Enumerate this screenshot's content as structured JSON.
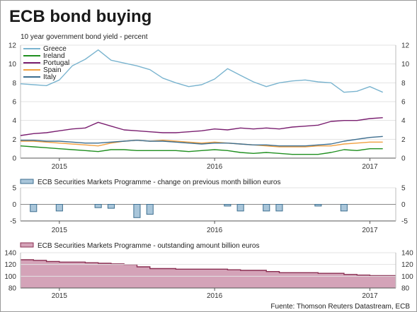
{
  "title": "ECB bond buying",
  "source": "Fuente: Thomson Reuters Datastream, ECB",
  "colors": {
    "Greece": "#7ab4cf",
    "Ireland": "#1f8f1f",
    "Portugal": "#7a1f70",
    "Spain": "#f0a040",
    "Italy": "#3d6e8f",
    "smp_change": "#3d6e8f",
    "smp_change_fill": "#a9c6da",
    "smp_outstanding": "#8a2f52",
    "smp_outstanding_fill": "#d4a3b8"
  },
  "chart_data": [
    {
      "type": "line",
      "subtitle": "10 year government bond yield - percent",
      "x_ticks": [
        "2015",
        "2016",
        "2017"
      ],
      "x_range": [
        "2014-10",
        "2017-03"
      ],
      "ylim": [
        0,
        12
      ],
      "y_ticks": [
        "0",
        "2",
        "4",
        "6",
        "8",
        "10",
        "12"
      ],
      "legend_position": "top-left",
      "x": [
        "2014-10",
        "2014-11",
        "2014-12",
        "2015-01",
        "2015-02",
        "2015-03",
        "2015-04",
        "2015-05",
        "2015-06",
        "2015-07",
        "2015-08",
        "2015-09",
        "2015-10",
        "2015-11",
        "2015-12",
        "2016-01",
        "2016-02",
        "2016-03",
        "2016-04",
        "2016-05",
        "2016-06",
        "2016-07",
        "2016-08",
        "2016-09",
        "2016-10",
        "2016-11",
        "2016-12",
        "2017-01",
        "2017-02"
      ],
      "series": [
        {
          "name": "Greece",
          "values": [
            7.9,
            7.8,
            7.7,
            8.3,
            9.8,
            10.5,
            11.5,
            10.4,
            10.1,
            9.8,
            9.4,
            8.5,
            8.0,
            7.6,
            7.8,
            8.4,
            9.5,
            8.8,
            8.1,
            7.6,
            8.0,
            8.2,
            8.3,
            8.1,
            8.0,
            7.0,
            7.1,
            7.6,
            7.0
          ]
        },
        {
          "name": "Ireland",
          "values": [
            1.3,
            1.2,
            1.1,
            1.0,
            0.9,
            0.8,
            0.7,
            0.9,
            0.9,
            0.8,
            0.8,
            0.8,
            0.8,
            0.7,
            0.8,
            0.9,
            0.8,
            0.6,
            0.5,
            0.6,
            0.5,
            0.4,
            0.4,
            0.4,
            0.6,
            0.9,
            0.8,
            1.0,
            1.0
          ]
        },
        {
          "name": "Portugal",
          "values": [
            2.4,
            2.6,
            2.7,
            2.9,
            3.1,
            3.2,
            3.8,
            3.4,
            3.0,
            2.9,
            2.8,
            2.7,
            2.7,
            2.8,
            2.9,
            3.1,
            3.0,
            3.2,
            3.1,
            3.2,
            3.1,
            3.3,
            3.4,
            3.5,
            3.9,
            4.0,
            4.0,
            4.2,
            4.3
          ]
        },
        {
          "name": "Spain",
          "values": [
            1.8,
            1.8,
            1.7,
            1.6,
            1.5,
            1.4,
            1.3,
            1.6,
            1.8,
            1.9,
            1.8,
            1.9,
            1.8,
            1.7,
            1.6,
            1.7,
            1.6,
            1.5,
            1.4,
            1.3,
            1.2,
            1.2,
            1.2,
            1.3,
            1.3,
            1.5,
            1.6,
            1.7,
            1.7
          ]
        },
        {
          "name": "Italy",
          "values": [
            1.9,
            1.9,
            1.8,
            1.8,
            1.7,
            1.6,
            1.6,
            1.7,
            1.8,
            1.9,
            1.8,
            1.8,
            1.7,
            1.6,
            1.5,
            1.6,
            1.6,
            1.5,
            1.4,
            1.4,
            1.3,
            1.3,
            1.3,
            1.4,
            1.5,
            1.8,
            2.0,
            2.2,
            2.3
          ]
        }
      ]
    },
    {
      "type": "area",
      "subtitle": "ECB Securities Markets Programme - change on previous month billion euros",
      "x_ticks": [
        "2015",
        "2016",
        "2017"
      ],
      "x_range": [
        "2014-10",
        "2017-03"
      ],
      "ylim": [
        -5,
        5
      ],
      "y_ticks": [
        "-5",
        "0",
        "5"
      ],
      "x": [
        "2014-10",
        "2014-11",
        "2014-12",
        "2015-01",
        "2015-02",
        "2015-03",
        "2015-04",
        "2015-05",
        "2015-06",
        "2015-07",
        "2015-08",
        "2015-09",
        "2015-10",
        "2015-11",
        "2015-12",
        "2016-01",
        "2016-02",
        "2016-03",
        "2016-04",
        "2016-05",
        "2016-06",
        "2016-07",
        "2016-08",
        "2016-09",
        "2016-10",
        "2016-11",
        "2016-12",
        "2017-01",
        "2017-02"
      ],
      "values": [
        0,
        -2.2,
        0,
        -2.0,
        0,
        0,
        -1.0,
        -1.2,
        0,
        -4.0,
        -3.0,
        0,
        0,
        0,
        0,
        0,
        -0.5,
        -2.0,
        0,
        -2.0,
        -2.0,
        0,
        0,
        -0.5,
        0,
        -2.0,
        0,
        0,
        0
      ]
    },
    {
      "type": "area",
      "subtitle": "ECB Securities Markets Programme - outstanding amount billion euros",
      "x_ticks": [
        "2015",
        "2016",
        "2017"
      ],
      "x_range": [
        "2014-10",
        "2017-03"
      ],
      "ylim": [
        80,
        140
      ],
      "y_ticks": [
        "80",
        "100",
        "120",
        "140"
      ],
      "x": [
        "2014-10",
        "2014-11",
        "2014-12",
        "2015-01",
        "2015-02",
        "2015-03",
        "2015-04",
        "2015-05",
        "2015-06",
        "2015-07",
        "2015-08",
        "2015-09",
        "2015-10",
        "2015-11",
        "2015-12",
        "2016-01",
        "2016-02",
        "2016-03",
        "2016-04",
        "2016-05",
        "2016-06",
        "2016-07",
        "2016-08",
        "2016-09",
        "2016-10",
        "2016-11",
        "2016-12",
        "2017-01",
        "2017-02"
      ],
      "values": [
        128,
        127,
        125,
        124,
        124,
        123,
        122,
        121,
        120,
        116,
        113,
        113,
        112,
        112,
        112,
        112,
        111,
        110,
        110,
        108,
        106,
        106,
        106,
        105,
        105,
        103,
        102,
        101,
        101
      ]
    }
  ]
}
